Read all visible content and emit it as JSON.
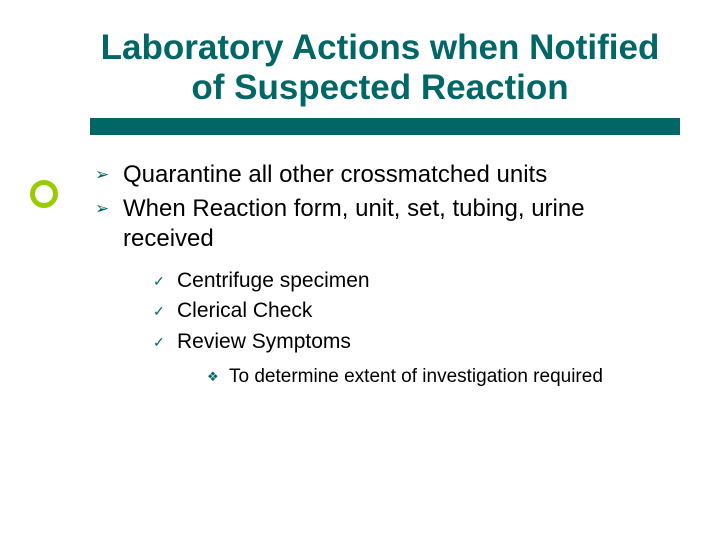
{
  "colors": {
    "teal": "#006666",
    "lime": "#99cc00",
    "text": "#000000",
    "background": "#ffffff"
  },
  "title": {
    "line1": "Laboratory Actions when Notified",
    "line2": "of Suspected Reaction"
  },
  "bullets_l1": [
    {
      "text": "Quarantine all other crossmatched units"
    },
    {
      "text": "When Reaction form, unit, set, tubing, urine received"
    }
  ],
  "bullets_l2": [
    {
      "text": "Centrifuge specimen"
    },
    {
      "text": "Clerical Check"
    },
    {
      "text": "Review Symptoms"
    }
  ],
  "bullets_l3": [
    {
      "text": "To determine extent of investigation required"
    }
  ],
  "glyphs": {
    "l1": "➢",
    "l2": "✓",
    "l3": "❖"
  },
  "typography": {
    "title_fontsize": 35,
    "l1_fontsize": 24,
    "l2_fontsize": 21,
    "l3_fontsize": 19
  }
}
